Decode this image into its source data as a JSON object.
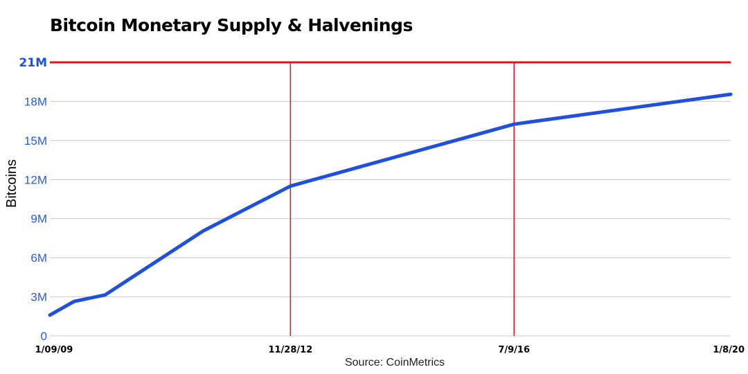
{
  "chart_data": {
    "type": "line",
    "title": "Bitcoin Monetary Supply & Halvenings",
    "ylabel": "Bitcoins",
    "xlabel": "",
    "source": "Source: CoinMetrics",
    "ylim": [
      0,
      21000000
    ],
    "y_ticks": [
      {
        "value": 0,
        "label": "0"
      },
      {
        "value": 3000000,
        "label": "3M"
      },
      {
        "value": 6000000,
        "label": "6M"
      },
      {
        "value": 9000000,
        "label": "9M"
      },
      {
        "value": 12000000,
        "label": "12M"
      },
      {
        "value": 15000000,
        "label": "15M"
      },
      {
        "value": 18000000,
        "label": "18M"
      },
      {
        "value": 21000000,
        "label": "21M"
      }
    ],
    "x_range": [
      "2009-01-09",
      "2020-01-08"
    ],
    "x_ticks": [
      {
        "date": "2009-01-09",
        "label": "1/09/09"
      },
      {
        "date": "2012-11-28",
        "label": "11/28/12"
      },
      {
        "date": "2016-07-09",
        "label": "7/9/16"
      },
      {
        "date": "2020-01-08",
        "label": "1/8/20"
      }
    ],
    "halvenings": [
      "2012-11-28",
      "2016-07-09"
    ],
    "supply_cap": 21000000,
    "series": [
      {
        "points": [
          {
            "x": "2009-01-09",
            "y": 1600000
          },
          {
            "x": "2009-06-01",
            "y": 2650000
          },
          {
            "x": "2009-12-01",
            "y": 3150000
          },
          {
            "x": "2010-07-01",
            "y": 4950000
          },
          {
            "x": "2011-07-01",
            "y": 8050000
          },
          {
            "x": "2012-11-28",
            "y": 11500000
          },
          {
            "x": "2016-07-09",
            "y": 16250000
          },
          {
            "x": "2020-01-08",
            "y": 18550000
          }
        ]
      }
    ],
    "grid": true,
    "colors": {
      "series": "#1f4fe0",
      "halving_line": "#e8111a",
      "cap_line": "#e8111a",
      "grid": "#c8c8c8",
      "axis_text": "#2a5bd7",
      "cap_label": "#1f4fe0"
    }
  }
}
